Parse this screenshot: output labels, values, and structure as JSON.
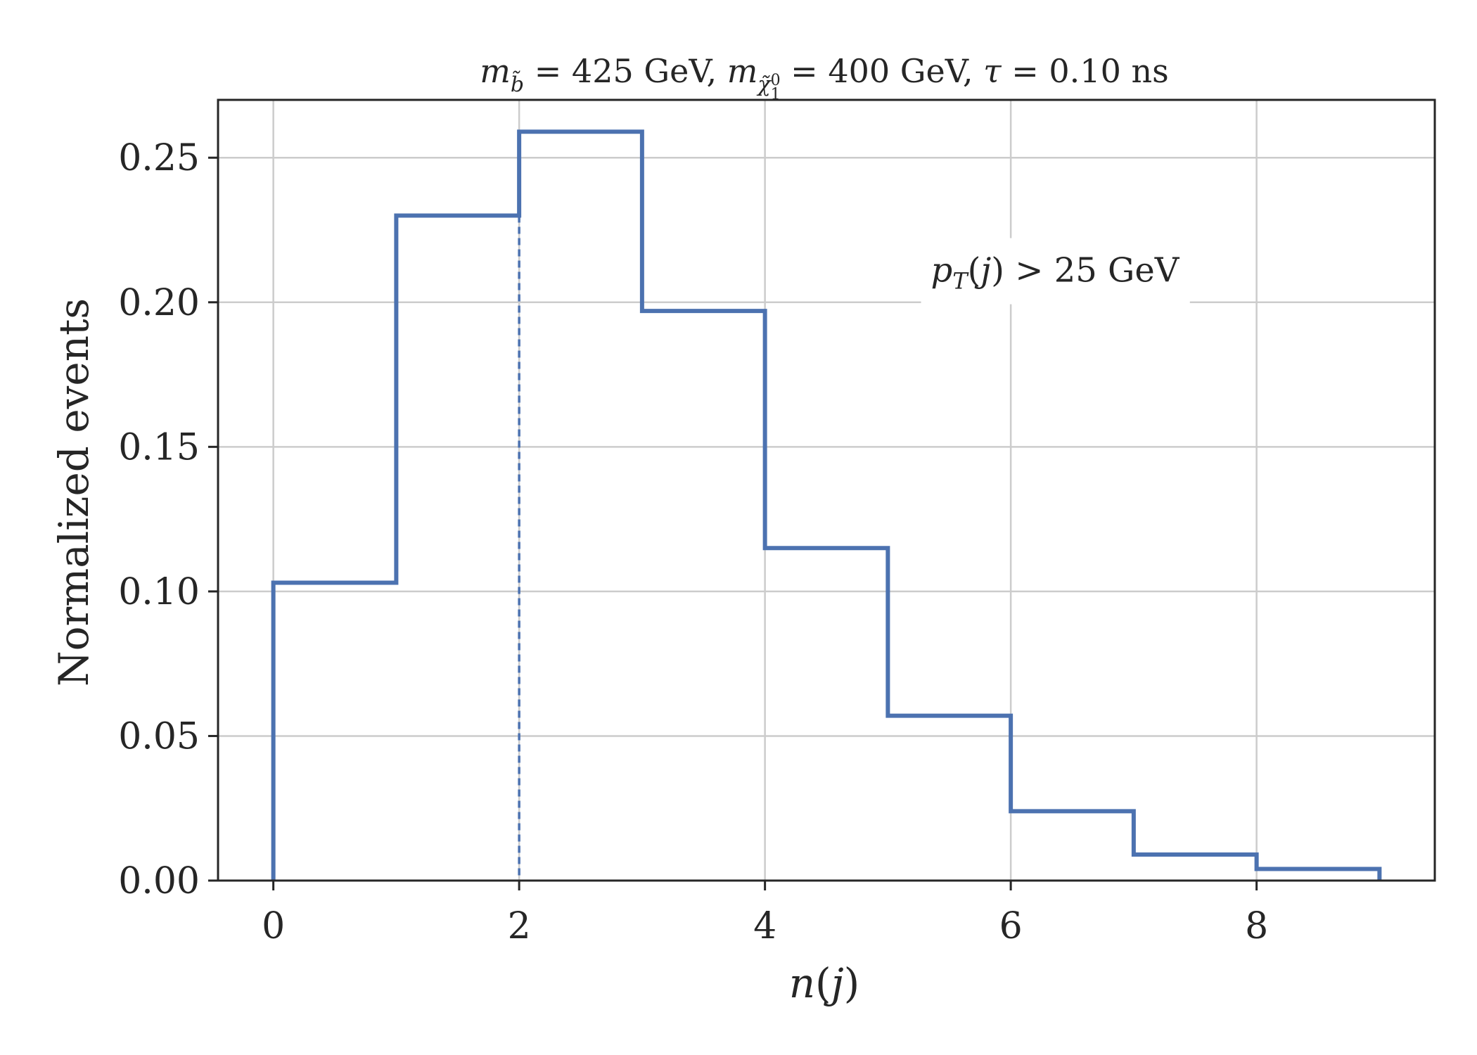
{
  "chart_data": {
    "type": "histogram-step",
    "title": "m_b̃ = 425 GeV, m_χ̃₁⁰ = 400 GeV, τ = 0.10 ns",
    "title_parts": {
      "m1": "m",
      "m1_sub": "b̃",
      "m1_rest": " = 425 GeV, ",
      "m2": "m",
      "m2_sub": "χ̃",
      "m2_subsub": "1",
      "m2_sup": "0",
      "m2_rest": " = 400 GeV, ",
      "tau": "τ",
      "tau_rest": " = 0.10 ns"
    },
    "xlabel": "n(j)",
    "xlabel_parts": {
      "n": "n",
      "open": "(",
      "j": "j",
      "close": ")"
    },
    "ylabel": "Normalized events",
    "xlim": [
      -0.45,
      9.45
    ],
    "ylim": [
      0,
      0.27
    ],
    "xticks": [
      0,
      2,
      4,
      6,
      8
    ],
    "xtick_labels": [
      "0",
      "2",
      "4",
      "6",
      "8"
    ],
    "yticks": [
      0.0,
      0.05,
      0.1,
      0.15,
      0.2,
      0.25
    ],
    "ytick_labels": [
      "0.00",
      "0.05",
      "0.10",
      "0.15",
      "0.20",
      "0.25"
    ],
    "grid": true,
    "bin_edges": [
      0,
      1,
      2,
      3,
      4,
      5,
      6,
      7,
      8,
      9
    ],
    "values": [
      0.103,
      0.23,
      0.259,
      0.197,
      0.115,
      0.057,
      0.024,
      0.009,
      0.004
    ],
    "marker_line": {
      "x": 2,
      "y_top": 0.23,
      "style": "dashed"
    },
    "annotation": {
      "text": "p_T(j) > 25 GeV",
      "p": "p",
      "p_sub": "T",
      "rest_open": "(",
      "j": "j",
      "rest_close": ") > 25 GeV",
      "anchor": [
        5.35,
        0.211
      ]
    },
    "colors": {
      "series": "#4c72b0",
      "grid": "#cccccc",
      "axes": "#262626"
    }
  }
}
